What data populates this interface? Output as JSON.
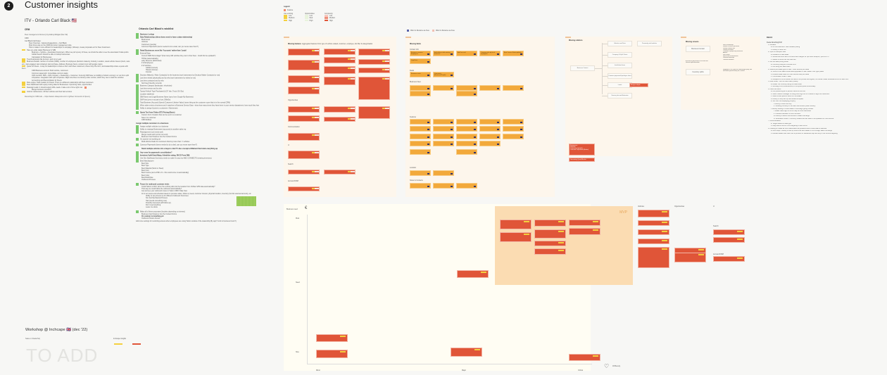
{
  "header": {
    "section_number": "2",
    "title": "Customer insights"
  },
  "itv": {
    "title": "ITV - Orlando Carl Black 🇺🇸",
    "crm": {
      "heading": "CRM",
      "link": "Fleet management discovery",
      "link_suffix": "by Aubrey Morgan (Nov '22)",
      "label": "CRM",
      "intro": "Carl Black Call Notes:",
      "items": [
        "Fleet Overview - features/suggestions + Carl Black",
        "Most focus was on the CRM and order management side.",
        "How to make it more efficient for dealerships to campaign, followup, create proposals etc for Fleet Customers",
        "Have an entity called 'Business' in WBI",
        "Business + Vehicle + Associated Customers. When we pull up any of these, we should be able to see the associated 3 data points",
        "Global Search should be able to lookup businesses",
        "Campaigns for Businesses",
        "Treat businesses like Account, and not a Lead",
        "Business Details: number of vehicle (CMM), number of employees (decision makers), Industry, Location, usual vehicle interest (truck, vans etc.), last engaged, last contacted, last purchase, Address, Business hours, contact (sync with google maps)",
        "Quote for Fleets - A way for dealerships to share a Form with Fleet customers, where they fill a form, and dealerships share a quote with them",
        "CRM Business account: Multi vehicle, customers",
        "Common paperwork: Consolidate common tasks",
        "Upfit scenario: DMI + Upfit company + Dealership + Customer. Currently DMI have no visibility of what's coming in or out from upfit companies. Integration with upfit companies. Right now there is a factory order number, which they use to track the vehicles",
        "Accounting and Reconciliation for Fleets",
        "Rule engine: Task creation for Fleets. There is a different relationship with fleet customers",
        "Fleet Dashboard with equity mining data for Businesses. Upcoming visits, opportunities",
        "Reassign leads: It should support 200+ leads. It take a lot of time right now.",
        "Merge business scenario?",
        "Vehicle maintenance. All fleet vehicles and their last services"
      ],
      "recording": "Recording for CRM call — https://tekion.sharepoint.com/:v:/g/Fleet Connector & Opency"
    }
  },
  "wishlist": {
    "title": "Orlando Carl Black's wishlist",
    "items": [
      "Business Lookup",
      "Data Relationships (these items need to have a data relationship)",
      "Businesses",
      "Vehicles",
      "Customers (people)",
      "Common Paperwork (items needed to do a deal, can you reuse save them?)",
      "Retail Businesses more like 'Accounts' rather than 'Leads'",
      "External Data",
      "Current OEM Percentage? (how many GM vehicles they own in their fleet - Could this be updated?)",
      "TIPNet (automatically)",
      "early Revenue (Estimated)",
      "# of Employees",
      "# of Vehicles",
      "Global (Current)",
      "Historic (Owner)",
      "Internal",
      "Decision Maker(s) / Main Contact(s) for the business (sort businesses by Decision Maker Contacted or not)",
      "Last time visited (physically) and by who (sort businesses by visited or not)",
      "Last time contacted and by who",
      "Not Fleet Friendly currently",
      "Business Category (landscape, electrician)",
      "Last time service and by who",
      "Typical Vehicle Type Purchased (LCF, Van, Truck, EV, Etc)",
      "Location (address)",
      "DBA Name and Legal Business Name (sync from Google My Business)",
      "DM Point (yes or not part of yet, DMeEn)",
      "Total Business (Account) Spend (Customer Lifetime Value) (some thing as the customer score that is in the normal CRM)",
      "When sales enters a business and it matches to Business Service Data - show how many times they have been in your service department, how much they have spent, and when the last time they were here is",
      "Ability to assign Quotes to customers / Businesses",
      "Quote Tool from Tekion DTS Pricing (Basic)",
      "Custom Form Creation that can be sent to a customer",
      "Save it to customer",
      "CRM Abilities",
      "Assign multiple customers to a business",
      "Assign multiple vehicles to a business",
      "Ability to reassign Businesses (accounts) to another sales rep",
      "Reassignment tool needs work",
      "Merge needs work (errors out a lot)",
      "Business Card Scanner into the Contact Forms",
      "OL scanner not working yet",
      "Multi-Vehicle Deals for customers that buy more than 'x' vehicles",
      "Common Paperwork (items needed to do a deal, can you reuse save them?)",
      "Stack multiple vehicles into a buyers order?! Like a receipt at Walmart that totals everything up",
      "Any room for paperwork consolidation?",
      "Inventory Upfit Data (Nbpp, Adminline rating, DUCS Form DM)",
      "Use Dez Dashboard Inventory needs to make it's way into ABC CONNECTS (missing inventory)",
      "Best Manufacturer",
      "Best Size",
      "Best Type",
      "Best Material (Stock or Steel)",
      "Best Cost",
      "Best Invoice (and a PDF of it - this could come in automatically)",
      "Best Color",
      "Best Build Date",
      "Outbound Process",
      "Traces for outbound customer visits",
      "Could Tekion confirm when the vehicle pulls into the location from OnStar GPS data automatically?",
      "That way we could follow the outbound automatically?",
      "Get and see your outbound routes in Tekion CRM / Map View",
      "AI to set routes and schedule based on previous sales, follow up need, customer interest, physical location, inventory (hot list selected amount), etc",
      "Ability to set process up for different Outbound Outcomes",
      "Not Just Mechanical Process",
      "Had (needs something now)",
      "Possibly interested (will follow up)",
      "Don't need anything",
      "Leave me alone",
      "Make all of these processes (buckets depending on interest)",
      "Business Card Scanner into the Contact Forms",
      "OL scanner not working yet",
      "Outbound Tekion Access",
      "Add more settings for restricting access when employees are using Tekion outside of the dealership (By app? Limit to business hours?)"
    ]
  },
  "legend": {
    "title": "Legend",
    "item": "Feature",
    "columns": [
      "Use existing",
      "Opportunities",
      "Complexity"
    ],
    "rows": [
      [
        "Low",
        "Low",
        "Low"
      ],
      [
        "Medium",
        "Med",
        "Medium"
      ],
      [
        "High",
        "High",
        "High"
      ]
    ]
  },
  "toggles": [
    "Want to Rename as Area",
    "Want to Rename as Area"
  ],
  "boards": {
    "missing_features": {
      "title": "Missing features",
      "subtitle": "Aggregated features from type of vehicle related, customer, employee, list filter & categorisation",
      "sections": [
        "Vehicles",
        "Opportunities",
        "Communication",
        "UI",
        "Search",
        "Account/CRM"
      ]
    },
    "missing_fields": {
      "title": "Missing fields",
      "sections": [
        "Contact info",
        "Deals",
        "Business Fleet",
        "Features",
        "Location",
        "Notes & Contacts"
      ],
      "contact_info": [
        "Business contacts / Employees",
        "Add ability to link existing business",
        "Add 'last visit'",
        "Company info by list of employees",
        "Best Contact Rank/upfit/info"
      ],
      "extra": [
        "Legal fees",
        "Business notes",
        "Comments (Business/People)"
      ]
    },
    "missing_relations": {
      "title": "Missing relations",
      "root": "Business Contact",
      "children": [
        "Vehicles and Parts",
        "Company & Upfit / fleets",
        "Installation Items",
        "Common paperwork/packages items",
        "Leads",
        "Service jobs and Estimates"
      ],
      "linked": [
        "Previously sold vehicles",
        "Assign multiple"
      ],
      "note_items": [
        "Businesses",
        "Vehicles",
        "Customers (people)",
        "Common Paperwork (Before)"
      ],
      "note_footer": "Generating Quote/Market"
    },
    "missing_screens": {
      "title": "Missing screens",
      "screens": [
        "Business Contact",
        "Inventory upfits"
      ],
      "screen_note": "A screen to add account of the fleet and relevant upfit information",
      "contact_fields": [
        "Fleet of relationship",
        "Number of vehicles purchased",
        "Delivery customer rate",
        "Lifetime of business",
        "Customers & people they worked with",
        "Address",
        "Fleet contact",
        "Special vehicle Manufacturer",
        "Preferred dealerships",
        "Overhead conditions"
      ],
      "upfit_note": "Integration (CSV) from the USA and upfit jump, also with dealer ground history for a vehicle"
    }
  },
  "deals": {
    "title": "DEALS",
    "intro": "Dealer/Enabling/FIM",
    "items": [
      "1. Rebates",
      "a. No commercial or fleet rebates pulling",
      "b. Aubrey to look into",
      "2. Upfit on transport fees",
      "a. Defaults on fleet deals",
      "b. Would like a line item to show what charges for upfit and transport, pull from VI",
      "c. Needs to come into F&I new line",
      "3. Got the deal pricing sheet",
      "a. Currently using an in-house form",
      "b. Not using our deal sheet",
      "4. Need a purchase type for fleet - Multi vehicle purchase",
      "a. Some of the sales should auto-populate on like create if this type pulled",
      "b. Different deal sheet for multi vehicle fleet purchase",
      "c. Commission under 1 deal",
      "d. Multiples of forms would not need to be printed and signed, but would create individual forms for each unit",
      "5. Deal Sheet - Got the new sheet (OEM)?",
      "a. Dealer not currently using the deal sheet",
      "b. Working on an enhancement to the quick quote functionality",
      "6. Fleet F&I Menu",
      "a. Not presenting an in person menu at this time",
      "b. Want Finance manager to using docu sign out of Orlando to sign out customers",
      "c. Need a fleet specific Menu for the dealer",
      "d. Aubrey to help set up new default template",
      "e. We Own not displaying properly",
      "i. Aubrey to look into why",
      "ii. Showing correctly in the Mac new screen (Deal 101890)",
      "f. Aubrey looking to move dealer to Docusign going forward",
      "i. Dealer feels sign off forms may be more beneficial",
      "ii. Possible utilization of both services",
      "iii. Aubrey to demo new version of sales concierge",
      "iv. Destination sheet - Currently Shared and will need to be updated for multi vehicle",
      "7. Documentation",
      "a. Target based on deal type",
      "b. May need to drill in to the targeting of fleet forms",
      "8. Looking to create as much automation as possible when a fleet deal is selected",
      "a. Next steps - Aubrey to set up some time with dealer to run through sales Concierge",
      "b. Advised dealer can reach out to product for additional help with any of the current targeting"
    ]
  },
  "matrix": {
    "y_label": "Business need",
    "y_levels": [
      "Must",
      "Need",
      "Nice"
    ],
    "x_levels": [
      "Minor",
      "Major",
      "Critical"
    ],
    "zone_label": "MVP",
    "columns": [
      "Vehicles",
      "Opportunities",
      "UI"
    ],
    "side_sections": [
      "Search",
      "Account/CRM"
    ],
    "vote_label": "Jill Beverly"
  },
  "workshop": {
    "title": "Workshop @ Inchcape 🇬🇧 (dec '22)",
    "link": "Sales on Dealerhsip",
    "insights_label": "Inchcape insights",
    "placeholder": "TO ADD"
  }
}
